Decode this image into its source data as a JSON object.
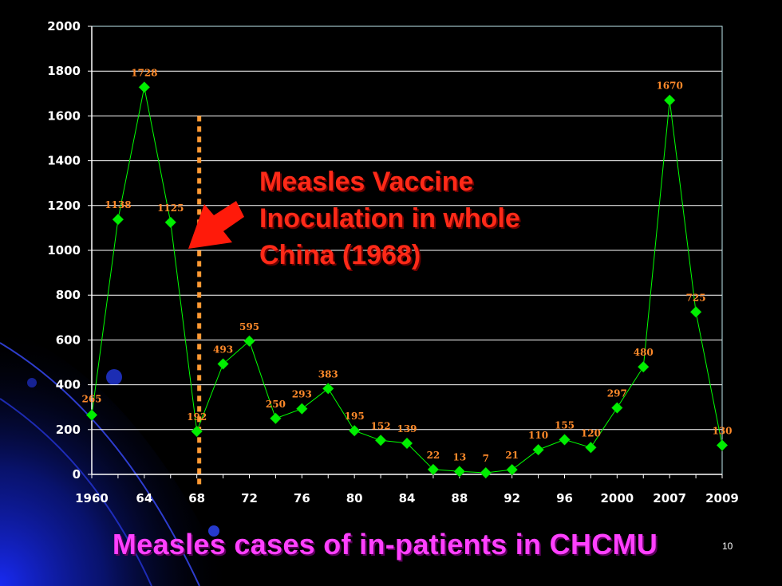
{
  "slide": {
    "title": "Measles cases of in-patients in CHCMU",
    "page_number": "10"
  },
  "annotation": {
    "text": "Measles Vaccine\nInoculation in whole\nChina (1968)"
  },
  "colors": {
    "background": "#000000",
    "line": "#00ff00",
    "marker": "#00ee00",
    "data_label": "#ff8a2a",
    "vaccine_marker_line": "#ff9933",
    "annotation_text": "#ff2a18",
    "arrow": "#ff1a0a",
    "title": "#ff40ff",
    "axis": "#ffffff"
  },
  "chart_data": {
    "type": "line",
    "x_tick_labels": [
      "1960",
      "64",
      "68",
      "72",
      "76",
      "80",
      "84",
      "88",
      "92",
      "96",
      "2000",
      "2007",
      "2009"
    ],
    "x": [
      "1960",
      "1962",
      "1964",
      "1966",
      "1968",
      "1970",
      "1972",
      "1974",
      "1976",
      "1978",
      "1980",
      "1982",
      "1984",
      "1986",
      "1988",
      "1990",
      "1992",
      "1994",
      "1996",
      "1998",
      "2000",
      "2002",
      "2007",
      "2008",
      "2009"
    ],
    "series": [
      {
        "values": [
          265,
          1138,
          1728,
          1125,
          192,
          493,
          595,
          250,
          293,
          383,
          195,
          152,
          139,
          22,
          13,
          7,
          21,
          110,
          155,
          120,
          297,
          480,
          1670,
          725,
          130
        ],
        "marker": "diamond"
      }
    ],
    "data_labels": [
      "265",
      "1138",
      "1728",
      "1125",
      "192",
      "493",
      "595",
      "250",
      "293",
      "383",
      "195",
      "152",
      "139",
      "22",
      "13",
      "7",
      "21",
      "110",
      "155",
      "120",
      "297",
      "480",
      "1670",
      "725",
      "130"
    ],
    "y_tick_labels": [
      "0",
      "200",
      "400",
      "600",
      "800",
      "1000",
      "1200",
      "1400",
      "1600",
      "1800",
      "2000"
    ],
    "ylim": [
      0,
      2000
    ],
    "y_ticks": [
      0,
      200,
      400,
      600,
      800,
      1000,
      1200,
      1400,
      1600,
      1800,
      2000
    ],
    "grid": true,
    "vaccine_marker_x": "1968"
  }
}
